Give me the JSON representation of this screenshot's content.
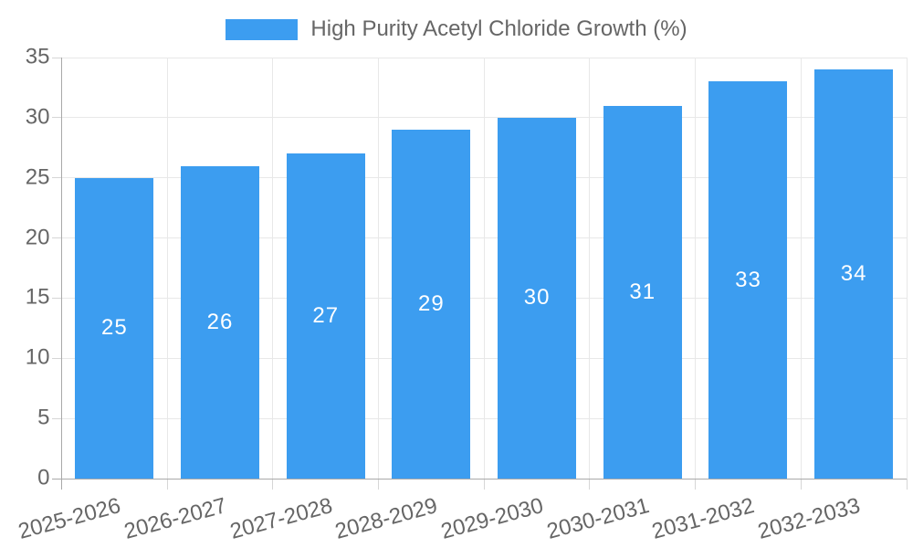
{
  "chart_data": {
    "type": "bar",
    "title": "High Purity Acetyl Chloride Growth (%)",
    "legend": {
      "label": "High Purity Acetyl Chloride Growth (%)",
      "position": "top"
    },
    "categories": [
      "2025-2026",
      "2026-2027",
      "2027-2028",
      "2028-2029",
      "2029-2030",
      "2030-2031",
      "2031-2032",
      "2032-2033"
    ],
    "values": [
      25,
      26,
      27,
      29,
      30,
      31,
      33,
      34
    ],
    "value_labels_shown": true,
    "xlabel": "",
    "ylabel": "",
    "ylim": [
      0,
      35
    ],
    "yticks": [
      0,
      5,
      10,
      15,
      20,
      25,
      30,
      35
    ],
    "grid": true,
    "legend_position": "top",
    "colors": {
      "bar": "#3C9DF0",
      "value_label": "#FFFFFF",
      "axis_text": "#666666",
      "grid_line": "#E8E8E8",
      "tick_mark": "#D6D6D6",
      "axis_line": "#A9A9A9",
      "background": "#FFFFFF"
    }
  }
}
